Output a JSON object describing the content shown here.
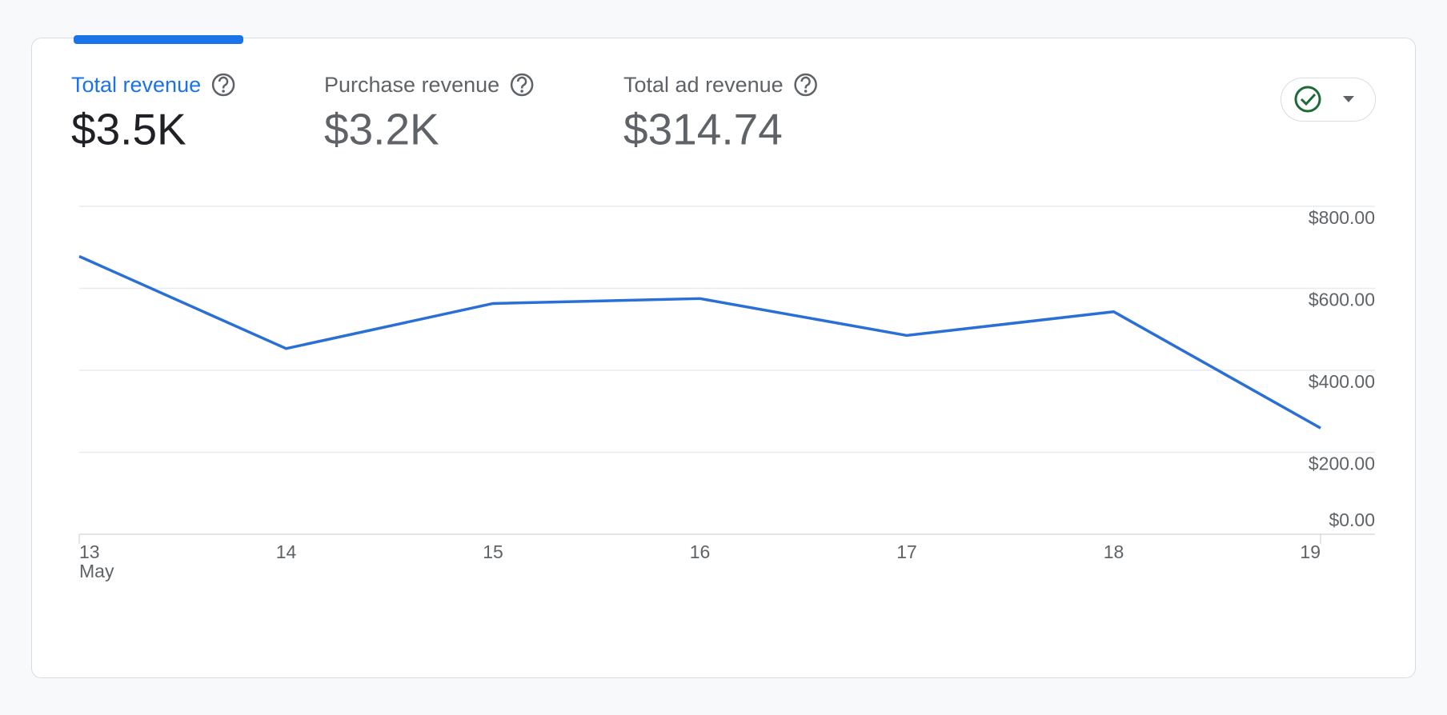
{
  "metrics": [
    {
      "label": "Total revenue",
      "value": "$3.5K"
    },
    {
      "label": "Purchase revenue",
      "value": "$3.2K"
    },
    {
      "label": "Total ad revenue",
      "value": "$314.74"
    }
  ],
  "chart_data": {
    "type": "line",
    "categories": [
      "13",
      "14",
      "15",
      "16",
      "17",
      "18",
      "19"
    ],
    "month_label": "May",
    "series": [
      {
        "name": "Total revenue",
        "color": "#2a6fd6",
        "values": [
          678,
          453,
          563,
          575,
          485,
          543,
          259
        ]
      }
    ],
    "ylim": [
      0,
      800
    ],
    "yticks": [
      {
        "value": 0,
        "label": "$0.00"
      },
      {
        "value": 200,
        "label": "$200.00"
      },
      {
        "value": 400,
        "label": "$400.00"
      },
      {
        "value": 600,
        "label": "$600.00"
      },
      {
        "value": 800,
        "label": "$800.00"
      }
    ],
    "grid": true
  }
}
